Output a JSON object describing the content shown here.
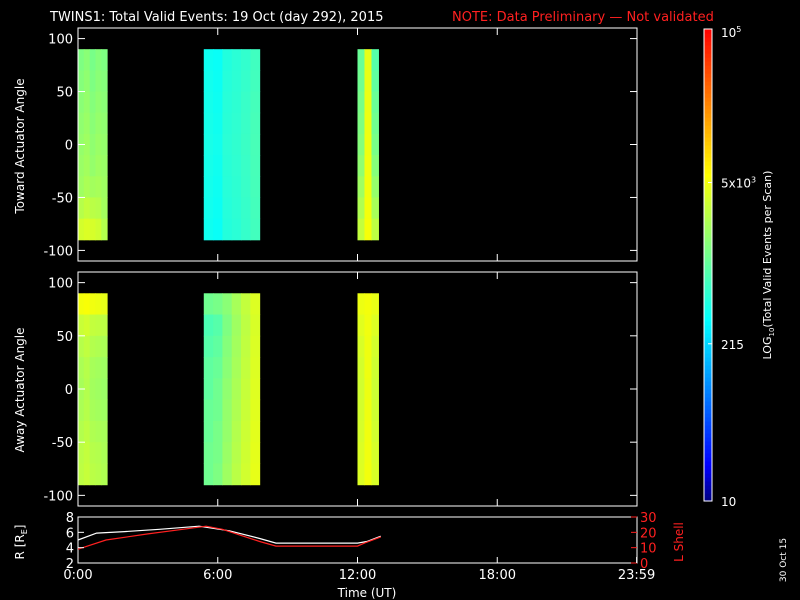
{
  "title": {
    "main": "TWINS1: Total Valid Events: 19 Oct (day 292), 2015",
    "note": "NOTE: Data Preliminary — Not validated",
    "note_color": "#ff2020"
  },
  "date_stamp": "30 Oct 15",
  "chart_data": [
    {
      "type": "heatmap",
      "ylabel": "Toward Actuator Angle",
      "ylim": [
        -110,
        110
      ],
      "yticks": [
        -100,
        -50,
        0,
        50,
        100
      ],
      "xlim": [
        0,
        24
      ],
      "rows": [
        80,
        60,
        40,
        20,
        0,
        -20,
        -40,
        -60,
        -80
      ],
      "blocks": [
        {
          "x": [
            0.0,
            0.25,
            0.5,
            0.75,
            1.0
          ],
          "end": 1.25,
          "z": [
            [
              1400,
              1600,
              1300,
              1500,
              1400
            ],
            [
              1500,
              1700,
              1400,
              1600,
              1500
            ],
            [
              1600,
              1800,
              1500,
              1700,
              1600
            ],
            [
              1700,
              1900,
              1600,
              1800,
              1700
            ],
            [
              1800,
              2000,
              1700,
              1900,
              1800
            ],
            [
              1900,
              2100,
              1800,
              2000,
              1900
            ],
            [
              2000,
              2300,
              2100,
              2200,
              2000
            ],
            [
              2600,
              3000,
              2700,
              2600,
              2100
            ],
            [
              3600,
              3900,
              3700,
              3400,
              2500
            ]
          ]
        },
        {
          "x": [
            5.4,
            5.8,
            6.2,
            6.6,
            7.0,
            7.4
          ],
          "end": 7.8,
          "z": [
            [
              400,
              380,
              500,
              550,
              600,
              700
            ],
            [
              420,
              390,
              520,
              560,
              620,
              720
            ],
            [
              430,
              400,
              530,
              570,
              640,
              740
            ],
            [
              440,
              410,
              540,
              580,
              650,
              760
            ],
            [
              450,
              420,
              550,
              590,
              660,
              770
            ],
            [
              440,
              410,
              540,
              580,
              650,
              760
            ],
            [
              430,
              400,
              530,
              570,
              640,
              750
            ],
            [
              420,
              390,
              520,
              560,
              630,
              730
            ],
            [
              410,
              380,
              510,
              550,
              620,
              720
            ]
          ]
        },
        {
          "x": [
            12.0,
            12.3,
            12.6
          ],
          "end": 12.9,
          "z": [
            [
              1100,
              4500,
              900
            ],
            [
              1200,
              4600,
              1000
            ],
            [
              1300,
              4700,
              1100
            ],
            [
              1400,
              4800,
              1200
            ],
            [
              1500,
              4900,
              1300
            ],
            [
              1700,
              5000,
              1500
            ],
            [
              2000,
              5100,
              1800
            ],
            [
              2400,
              5200,
              2200
            ],
            [
              3000,
              5300,
              2800
            ]
          ]
        }
      ]
    },
    {
      "type": "heatmap",
      "ylabel": "Away Actuator Angle",
      "ylim": [
        -110,
        110
      ],
      "yticks": [
        -100,
        -50,
        0,
        50,
        100
      ],
      "xlim": [
        0,
        24
      ],
      "rows": [
        80,
        60,
        40,
        20,
        0,
        -20,
        -40,
        -60,
        -80
      ],
      "blocks": [
        {
          "x": [
            0.0,
            0.25,
            0.5,
            0.75,
            1.0
          ],
          "end": 1.25,
          "z": [
            [
              5200,
              5500,
              5000,
              4800,
              4500
            ],
            [
              3200,
              3500,
              3000,
              2900,
              2800
            ],
            [
              2600,
              2900,
              2500,
              2400,
              2300
            ],
            [
              2300,
              2600,
              2200,
              2100,
              2000
            ],
            [
              2200,
              2500,
              2100,
              2000,
              1900
            ],
            [
              2300,
              2600,
              2200,
              2100,
              2000
            ],
            [
              2500,
              2800,
              2400,
              2300,
              2200
            ],
            [
              2700,
              3000,
              2600,
              2500,
              2300
            ],
            [
              2800,
              3100,
              2700,
              2600,
              2400
            ]
          ]
        },
        {
          "x": [
            5.4,
            5.8,
            6.2,
            6.6,
            7.0,
            7.4
          ],
          "end": 7.8,
          "z": [
            [
              1200,
              1300,
              1600,
              2200,
              3000,
              4000
            ],
            [
              800,
              900,
              1400,
              2000,
              2800,
              3800
            ],
            [
              900,
              1000,
              1500,
              2100,
              2900,
              3900
            ],
            [
              1000,
              1100,
              1600,
              2200,
              3000,
              4000
            ],
            [
              1000,
              1200,
              1700,
              2300,
              3100,
              4100
            ],
            [
              1100,
              1200,
              1800,
              2400,
              3200,
              4200
            ],
            [
              1100,
              1300,
              1800,
              2500,
              3300,
              4300
            ],
            [
              1200,
              1300,
              1900,
              2600,
              3400,
              4400
            ],
            [
              1200,
              1400,
              2000,
              2700,
              3500,
              4500
            ]
          ]
        },
        {
          "x": [
            12.0,
            12.3,
            12.6
          ],
          "end": 12.9,
          "z": [
            [
              4800,
              5200,
              4600
            ],
            [
              4200,
              5000,
              4000
            ],
            [
              3800,
              4900,
              3600
            ],
            [
              3600,
              4900,
              3400
            ],
            [
              3500,
              4800,
              3300
            ],
            [
              3600,
              4900,
              3400
            ],
            [
              3700,
              5000,
              3500
            ],
            [
              3900,
              5000,
              3700
            ],
            [
              4000,
              5100,
              3800
            ]
          ]
        }
      ]
    },
    {
      "type": "line",
      "xlabel": "Time (UT)",
      "xlim": [
        0,
        24
      ],
      "xticks": [
        0,
        6,
        12,
        18,
        23.983
      ],
      "xtick_labels": [
        "0:00",
        "6:00",
        "12:00",
        "18:00",
        "23:59"
      ],
      "ylabel_left": "R [R",
      "ylabel_left_sub": "E",
      "ylabel_left_close": "]",
      "ylim_left": [
        2,
        8
      ],
      "yticks_left": [
        2,
        4,
        6,
        8
      ],
      "ylabel_right": "L Shell",
      "ylim_right": [
        0,
        30
      ],
      "yticks_right": [
        0,
        10,
        20,
        30
      ],
      "series": [
        {
          "axis": "left",
          "color": "#ffffff",
          "x": [
            0,
            0.8,
            2,
            3.5,
            5.2,
            6.5,
            7.8,
            8.5,
            12.0,
            12.4,
            13.0
          ],
          "y": [
            5.0,
            5.9,
            6.1,
            6.4,
            6.8,
            6.2,
            5.2,
            4.6,
            4.6,
            4.8,
            5.5
          ]
        },
        {
          "axis": "right",
          "color": "#ff2020",
          "x": [
            0,
            1.2,
            3,
            4.5,
            5.5,
            6.2,
            7.8,
            8.5,
            12.0,
            12.3,
            13.0
          ],
          "y": [
            9,
            15,
            19,
            22,
            24,
            22,
            14,
            11,
            11,
            13,
            17
          ]
        }
      ]
    }
  ],
  "colorbar": {
    "type": "log",
    "min": 10,
    "max": 100000,
    "title_a": "LOG",
    "title_sub": "10",
    "title_b": "(Total Valid  Events per Scan)",
    "ticks": [
      {
        "value": 100000,
        "base": "10",
        "sup": "5"
      },
      {
        "value": 5000,
        "base": "5x10",
        "sup": "3"
      },
      {
        "value": 215,
        "base": "215",
        "sup": ""
      },
      {
        "value": 10,
        "base": "10",
        "sup": ""
      }
    ],
    "palette": [
      "#000080",
      "#0000ff",
      "#0040ff",
      "#0080ff",
      "#00c0ff",
      "#00ffff",
      "#40ffc0",
      "#80ff80",
      "#c0ff40",
      "#ffff00",
      "#ffc000",
      "#ff8000",
      "#ff4000",
      "#ff0000"
    ]
  }
}
